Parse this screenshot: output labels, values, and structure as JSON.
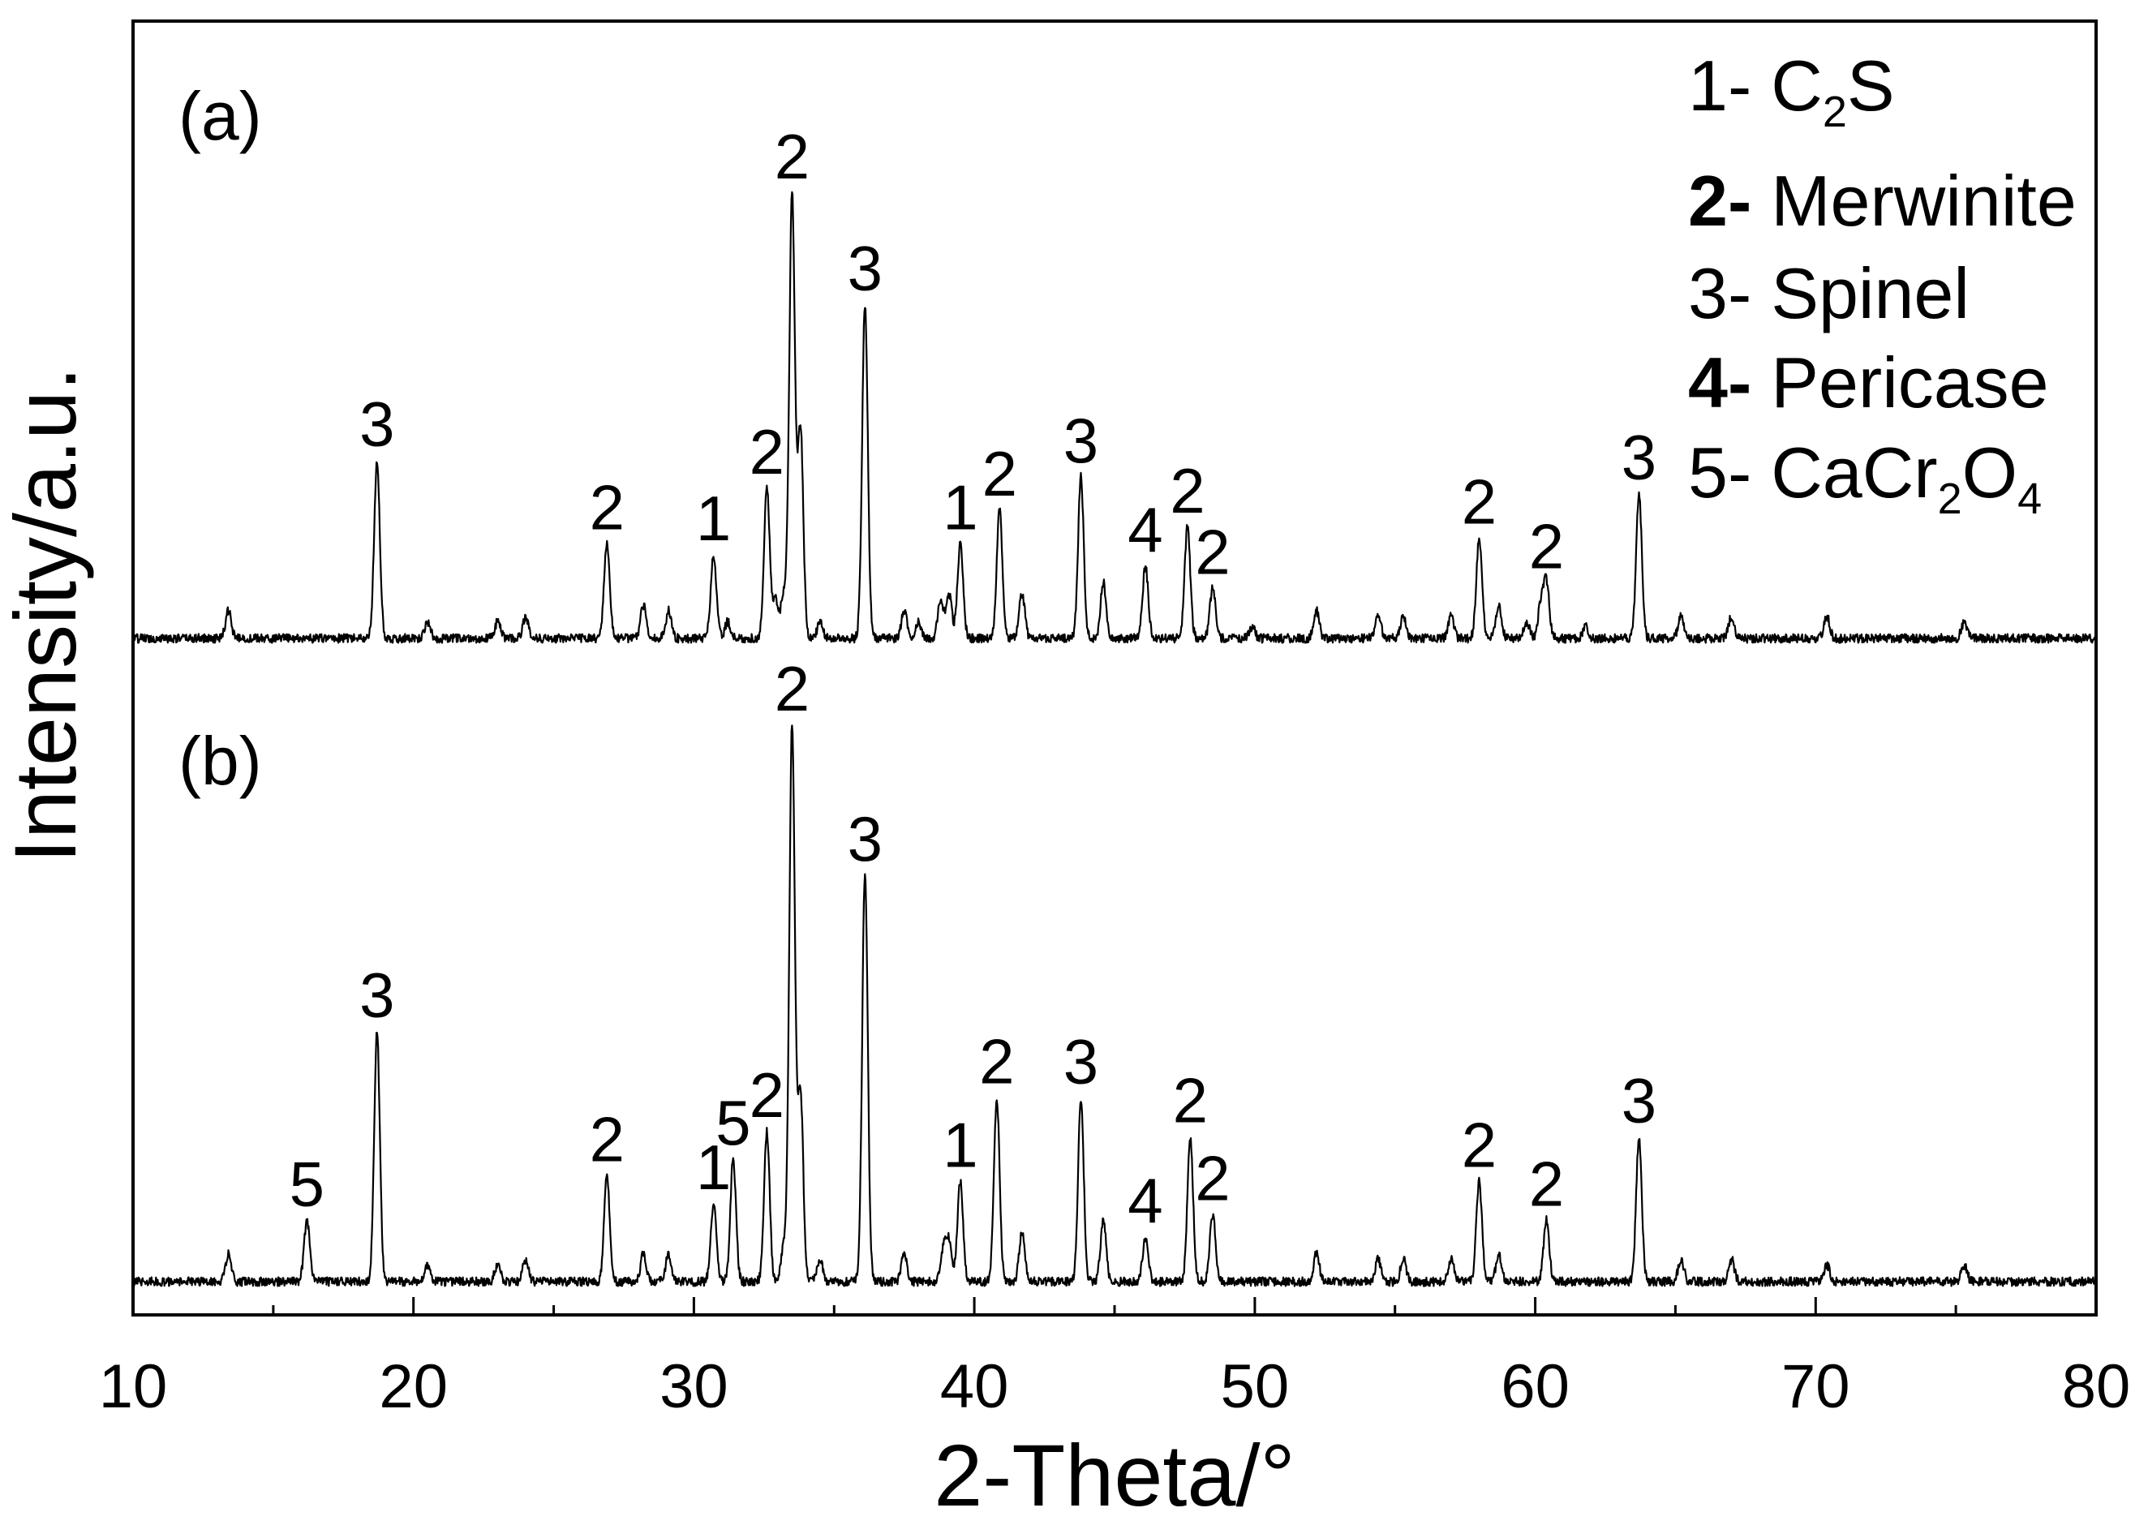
{
  "chart_data": {
    "type": "line",
    "xlabel": "2-Theta/°",
    "ylabel": "Intensity/a.u.",
    "xlim": [
      10,
      80
    ],
    "xticks": [
      10,
      20,
      30,
      40,
      50,
      60,
      70,
      80
    ],
    "yticks": [],
    "grid": false,
    "line_color": "#000000",
    "background": "#ffffff",
    "legend": {
      "placement": "top-right",
      "entries": [
        {
          "key": "1-",
          "parts": [
            "C",
            "2",
            "S"
          ]
        },
        {
          "key": "2-",
          "parts": [
            "Merwinite"
          ]
        },
        {
          "key": "3-",
          "parts": [
            "Spinel"
          ]
        },
        {
          "key": "4-",
          "parts": [
            "Pericase"
          ]
        },
        {
          "key": "5-",
          "parts": [
            "CaCr",
            "2",
            "O",
            "4"
          ]
        }
      ]
    },
    "series": [
      {
        "name": "(a)",
        "peaks": [
          {
            "x": 13.4,
            "y": 5
          },
          {
            "x": 18.7,
            "y": 32,
            "label": "3"
          },
          {
            "x": 20.5,
            "y": 3
          },
          {
            "x": 23.0,
            "y": 3
          },
          {
            "x": 24.0,
            "y": 4
          },
          {
            "x": 26.9,
            "y": 17,
            "label": "2"
          },
          {
            "x": 28.2,
            "y": 6
          },
          {
            "x": 29.1,
            "y": 5
          },
          {
            "x": 30.7,
            "y": 15,
            "label": "1"
          },
          {
            "x": 31.2,
            "y": 3
          },
          {
            "x": 32.6,
            "y": 27,
            "label": "2"
          },
          {
            "x": 32.9,
            "y": 7
          },
          {
            "x": 33.2,
            "y": 8
          },
          {
            "x": 33.5,
            "y": 80,
            "label": "2"
          },
          {
            "x": 33.8,
            "y": 38
          },
          {
            "x": 34.5,
            "y": 3
          },
          {
            "x": 36.1,
            "y": 60,
            "label": "3"
          },
          {
            "x": 37.5,
            "y": 5
          },
          {
            "x": 38.0,
            "y": 3
          },
          {
            "x": 38.8,
            "y": 7
          },
          {
            "x": 39.1,
            "y": 8
          },
          {
            "x": 39.5,
            "y": 17,
            "label": "1"
          },
          {
            "x": 40.9,
            "y": 23,
            "label": "2"
          },
          {
            "x": 41.7,
            "y": 8
          },
          {
            "x": 43.8,
            "y": 29,
            "label": "3"
          },
          {
            "x": 44.6,
            "y": 10
          },
          {
            "x": 46.1,
            "y": 13,
            "label": "4"
          },
          {
            "x": 47.6,
            "y": 20,
            "label": "2"
          },
          {
            "x": 48.5,
            "y": 9,
            "label": "2"
          },
          {
            "x": 49.9,
            "y": 2
          },
          {
            "x": 52.2,
            "y": 5
          },
          {
            "x": 54.4,
            "y": 4
          },
          {
            "x": 55.3,
            "y": 4
          },
          {
            "x": 57.0,
            "y": 4
          },
          {
            "x": 58.0,
            "y": 18,
            "label": "2"
          },
          {
            "x": 58.7,
            "y": 6
          },
          {
            "x": 59.7,
            "y": 3
          },
          {
            "x": 60.2,
            "y": 6
          },
          {
            "x": 60.4,
            "y": 10,
            "label": "2"
          },
          {
            "x": 61.8,
            "y": 2
          },
          {
            "x": 63.7,
            "y": 26,
            "label": "3"
          },
          {
            "x": 65.2,
            "y": 4
          },
          {
            "x": 67.0,
            "y": 4
          },
          {
            "x": 70.4,
            "y": 4
          },
          {
            "x": 75.3,
            "y": 3
          }
        ]
      },
      {
        "name": "(b)",
        "peaks": [
          {
            "x": 13.4,
            "y": 5
          },
          {
            "x": 16.2,
            "y": 11,
            "label": "5"
          },
          {
            "x": 18.7,
            "y": 45,
            "label": "3"
          },
          {
            "x": 20.5,
            "y": 3
          },
          {
            "x": 23.0,
            "y": 3
          },
          {
            "x": 24.0,
            "y": 4
          },
          {
            "x": 26.9,
            "y": 19,
            "label": "2"
          },
          {
            "x": 28.2,
            "y": 5
          },
          {
            "x": 29.1,
            "y": 5
          },
          {
            "x": 30.7,
            "y": 14,
            "label": "1"
          },
          {
            "x": 31.4,
            "y": 22,
            "label": "5"
          },
          {
            "x": 32.6,
            "y": 27,
            "label": "2"
          },
          {
            "x": 33.2,
            "y": 6
          },
          {
            "x": 33.5,
            "y": 100,
            "label": "2"
          },
          {
            "x": 33.8,
            "y": 34
          },
          {
            "x": 34.5,
            "y": 4
          },
          {
            "x": 36.1,
            "y": 73,
            "label": "3"
          },
          {
            "x": 37.5,
            "y": 5
          },
          {
            "x": 38.9,
            "y": 6
          },
          {
            "x": 39.1,
            "y": 7
          },
          {
            "x": 39.5,
            "y": 18,
            "label": "1"
          },
          {
            "x": 40.8,
            "y": 33,
            "label": "2"
          },
          {
            "x": 41.7,
            "y": 9
          },
          {
            "x": 43.8,
            "y": 33,
            "label": "3"
          },
          {
            "x": 44.6,
            "y": 11
          },
          {
            "x": 46.1,
            "y": 8,
            "label": "4"
          },
          {
            "x": 47.7,
            "y": 26,
            "label": "2"
          },
          {
            "x": 48.5,
            "y": 12,
            "label": "2"
          },
          {
            "x": 52.2,
            "y": 5
          },
          {
            "x": 54.4,
            "y": 4
          },
          {
            "x": 55.3,
            "y": 4
          },
          {
            "x": 57.0,
            "y": 4
          },
          {
            "x": 58.0,
            "y": 18,
            "label": "2"
          },
          {
            "x": 58.7,
            "y": 5
          },
          {
            "x": 60.4,
            "y": 11,
            "label": "2"
          },
          {
            "x": 63.7,
            "y": 26,
            "label": "3"
          },
          {
            "x": 65.2,
            "y": 4
          },
          {
            "x": 67.0,
            "y": 4
          },
          {
            "x": 70.4,
            "y": 3
          },
          {
            "x": 75.3,
            "y": 3
          }
        ]
      }
    ]
  }
}
